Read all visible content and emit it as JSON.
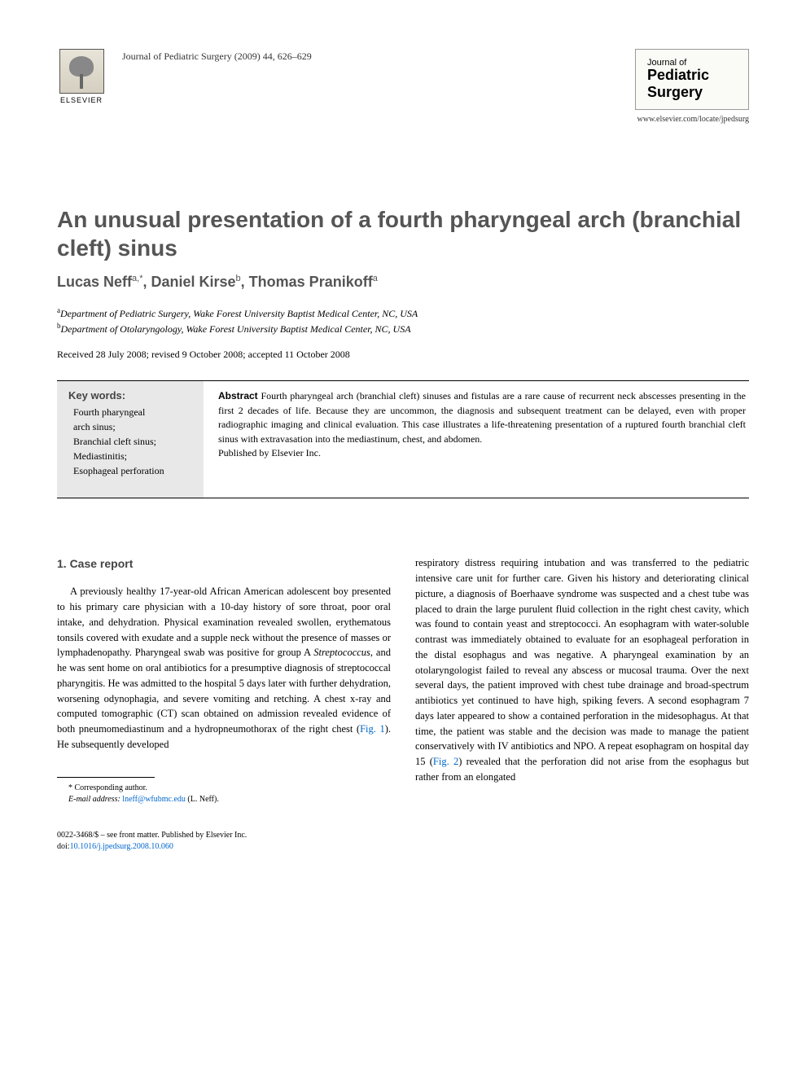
{
  "header": {
    "citation": "Journal of Pediatric Surgery (2009) 44, 626–629",
    "publisher_name": "ELSEVIER",
    "journal_of": "Journal of",
    "journal_name_1": "Pediatric",
    "journal_name_2": "Surgery",
    "journal_url": "www.elsevier.com/locate/jpedsurg"
  },
  "article": {
    "title": "An unusual presentation of a fourth pharyngeal arch (branchial cleft) sinus",
    "authors_html": "Lucas Neff",
    "author1_sup": "a,*",
    "author2": ", Daniel Kirse",
    "author2_sup": "b",
    "author3": ", Thomas Pranikoff",
    "author3_sup": "a",
    "affiliation_a_sup": "a",
    "affiliation_a": "Department of Pediatric Surgery, Wake Forest University Baptist Medical Center, NC, USA",
    "affiliation_b_sup": "b",
    "affiliation_b": "Department of Otolaryngology, Wake Forest University Baptist Medical Center, NC, USA",
    "dates": "Received 28 July 2008; revised 9 October 2008; accepted 11 October 2008"
  },
  "keywords": {
    "title": "Key words:",
    "items": "Fourth pharyngeal\n  arch sinus;\nBranchial cleft sinus;\nMediastinitis;\nEsophageal perforation"
  },
  "abstract": {
    "label": "Abstract",
    "text": " Fourth pharyngeal arch (branchial cleft) sinuses and fistulas are a rare cause of recurrent neck abscesses presenting in the first 2 decades of life. Because they are uncommon, the diagnosis and subsequent treatment can be delayed, even with proper radiographic imaging and clinical evaluation. This case illustrates a life-threatening presentation of a ruptured fourth branchial cleft sinus with extravasation into the mediastinum, chest, and abdomen.",
    "publisher": "Published by Elsevier Inc."
  },
  "body": {
    "section1_heading": "1. Case report",
    "col1_para": "A previously healthy 17-year-old African American adolescent boy presented to his primary care physician with a 10-day history of sore throat, poor oral intake, and dehydration. Physical examination revealed swollen, erythematous tonsils covered with exudate and a supple neck without the presence of masses or lymphadenopathy. Pharyngeal swab was positive for group A ",
    "col1_strep": "Streptococcus",
    "col1_para_cont": ", and he was sent home on oral antibiotics for a presumptive diagnosis of streptococcal pharyngitis. He was admitted to the hospital 5 days later with further dehydration, worsening odynophagia, and severe vomiting and retching. A chest x-ray and computed tomographic (CT) scan obtained on admission revealed evidence of both pneumomediastinum and a hydropneumothorax of the right chest (",
    "col1_fig1": "Fig. 1",
    "col1_para_end": "). He subsequently developed",
    "col2_para": "respiratory distress requiring intubation and was transferred to the pediatric intensive care unit for further care. Given his history and deteriorating clinical picture, a diagnosis of Boerhaave syndrome was suspected and a chest tube was placed to drain the large purulent fluid collection in the right chest cavity, which was found to contain yeast and streptococci. An esophagram with water-soluble contrast was immediately obtained to evaluate for an esophageal perforation in the distal esophagus and was negative. A pharyngeal examination by an otolaryngologist failed to reveal any abscess or mucosal trauma. Over the next several days, the patient improved with chest tube drainage and broad-spectrum antibiotics yet continued to have high, spiking fevers. A second esophagram 7 days later appeared to show a contained perforation in the midesophagus. At that time, the patient was stable and the decision was made to manage the patient conservatively with IV antibiotics and NPO. A repeat esophagram on hospital day 15 (",
    "col2_fig2": "Fig. 2",
    "col2_para_end": ") revealed that the perforation did not arise from the esophagus but rather from an elongated"
  },
  "footnotes": {
    "corresponding": "* Corresponding author.",
    "email_label": "E-mail address:",
    "email": "lneff@wfubmc.edu",
    "email_name": " (L. Neff)."
  },
  "copyright": {
    "line1": "0022-3468/$ – see front matter. Published by Elsevier Inc.",
    "doi_label": "doi:",
    "doi": "10.1016/j.jpedsurg.2008.10.060"
  },
  "colors": {
    "title_gray": "#555555",
    "link_blue": "#0066cc",
    "keyword_bg": "#e8e8e8"
  }
}
